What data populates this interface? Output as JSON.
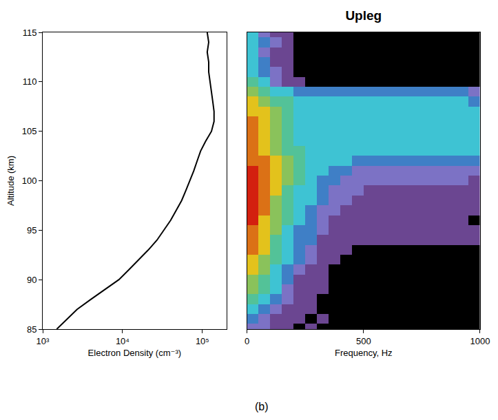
{
  "chart_data": [
    {
      "type": "line",
      "x_label": "Electron Density (cm⁻³)",
      "y_label": "Altitude (km)",
      "log": "x",
      "color": "#000000",
      "x": [
        1500,
        2000,
        2700,
        4000,
        6000,
        9000,
        12000,
        16000,
        21000,
        27000,
        33000,
        40000,
        47000,
        55000,
        62000,
        70000,
        78000,
        86000,
        95000,
        110000,
        130000,
        140000,
        140000,
        135000,
        130000,
        125000,
        120000,
        120000,
        115000,
        120000,
        115000
      ],
      "y": [
        85,
        86,
        87,
        88,
        89,
        90,
        91,
        92,
        93,
        94,
        95,
        96,
        97,
        98,
        99,
        100,
        101,
        102,
        103,
        104,
        105,
        106,
        107,
        108,
        109,
        110,
        111,
        112,
        113,
        114,
        115
      ],
      "xlim": [
        1000,
        200000
      ],
      "xticks": [
        {
          "value": 1000,
          "label": "10³"
        },
        {
          "value": 10000,
          "label": "10⁴"
        },
        {
          "value": 100000,
          "label": "10⁵"
        }
      ],
      "ylim": [
        85,
        115
      ],
      "yticks": [
        85,
        90,
        95,
        100,
        105,
        110,
        115
      ]
    },
    {
      "type": "heatmap",
      "title": "Upleg",
      "x_label": "Frequency, Hz",
      "tick_labels": "x",
      "x": [
        25,
        75,
        125,
        175,
        225,
        275,
        325,
        375,
        425,
        475,
        525,
        575,
        625,
        675,
        725,
        775,
        825,
        875,
        925,
        975
      ],
      "y": [
        85,
        86,
        87,
        88,
        89,
        90,
        91,
        92,
        93,
        94,
        95,
        96,
        97,
        98,
        99,
        100,
        101,
        102,
        103,
        104,
        105,
        106,
        107,
        108,
        109,
        110,
        111,
        112,
        113,
        114,
        115
      ],
      "z": [
        [
          3,
          3,
          2,
          2,
          1,
          2,
          1,
          1,
          0,
          0,
          0,
          0,
          0,
          0,
          0,
          0,
          0,
          0,
          0,
          0
        ],
        [
          4,
          3,
          2,
          2,
          2,
          1,
          2,
          0,
          0,
          0,
          0,
          0,
          0,
          0,
          0,
          0,
          0,
          0,
          0,
          0
        ],
        [
          5,
          4,
          3,
          2,
          2,
          2,
          1,
          0,
          0,
          0,
          0,
          0,
          0,
          0,
          0,
          0,
          0,
          0,
          0,
          0
        ],
        [
          6,
          5,
          4,
          3,
          2,
          2,
          1,
          0,
          0,
          0,
          0,
          0,
          0,
          0,
          0,
          0,
          0,
          0,
          0,
          0
        ],
        [
          7,
          6,
          5,
          3,
          2,
          2,
          2,
          1,
          0,
          0,
          0,
          0,
          0,
          0,
          0,
          0,
          0,
          0,
          0,
          0
        ],
        [
          7,
          6,
          5,
          4,
          2,
          2,
          2,
          1,
          0,
          0,
          0,
          0,
          0,
          0,
          0,
          0,
          0,
          0,
          0,
          0
        ],
        [
          8,
          7,
          5,
          4,
          3,
          2,
          2,
          1,
          1,
          0,
          0,
          0,
          0,
          0,
          0,
          0,
          0,
          0,
          0,
          0
        ],
        [
          8,
          7,
          6,
          5,
          4,
          3,
          2,
          2,
          1,
          1,
          1,
          1,
          0,
          0,
          0,
          0,
          0,
          0,
          0,
          0
        ],
        [
          9,
          8,
          6,
          5,
          4,
          3,
          2,
          2,
          2,
          1,
          1,
          1,
          1,
          1,
          1,
          1,
          1,
          1,
          1,
          1
        ],
        [
          9,
          8,
          6,
          5,
          4,
          4,
          2,
          2,
          2,
          2,
          2,
          2,
          2,
          2,
          2,
          2,
          2,
          2,
          2,
          2
        ],
        [
          9,
          8,
          7,
          5,
          4,
          4,
          3,
          2,
          2,
          2,
          2,
          2,
          2,
          2,
          2,
          2,
          2,
          2,
          2,
          2
        ],
        [
          10,
          8,
          7,
          6,
          5,
          4,
          3,
          2,
          2,
          2,
          2,
          2,
          2,
          2,
          2,
          2,
          2,
          2,
          2,
          1
        ],
        [
          10,
          9,
          7,
          6,
          5,
          4,
          3,
          3,
          2,
          2,
          2,
          2,
          2,
          2,
          2,
          2,
          2,
          2,
          2,
          2
        ],
        [
          10,
          9,
          7,
          6,
          5,
          5,
          4,
          3,
          3,
          2,
          2,
          2,
          2,
          2,
          2,
          2,
          2,
          2,
          2,
          2
        ],
        [
          10,
          9,
          8,
          6,
          5,
          5,
          4,
          3,
          3,
          3,
          2,
          2,
          2,
          2,
          2,
          2,
          2,
          2,
          2,
          2
        ],
        [
          10,
          9,
          8,
          7,
          6,
          5,
          4,
          4,
          3,
          3,
          3,
          3,
          3,
          3,
          3,
          3,
          3,
          3,
          3,
          2
        ],
        [
          10,
          9,
          8,
          7,
          6,
          5,
          5,
          4,
          4,
          3,
          3,
          3,
          3,
          3,
          3,
          3,
          3,
          3,
          3,
          3
        ],
        [
          9,
          9,
          8,
          7,
          6,
          5,
          5,
          5,
          5,
          4,
          4,
          4,
          4,
          4,
          4,
          4,
          4,
          4,
          4,
          4
        ],
        [
          9,
          8,
          7,
          6,
          6,
          5,
          5,
          5,
          5,
          5,
          5,
          5,
          5,
          5,
          5,
          5,
          5,
          5,
          5,
          5
        ],
        [
          9,
          8,
          7,
          6,
          5,
          5,
          5,
          5,
          5,
          5,
          5,
          5,
          5,
          5,
          5,
          5,
          5,
          5,
          5,
          5
        ],
        [
          9,
          8,
          7,
          6,
          5,
          5,
          5,
          5,
          5,
          5,
          5,
          5,
          5,
          5,
          5,
          5,
          5,
          5,
          5,
          5
        ],
        [
          9,
          8,
          7,
          6,
          5,
          5,
          5,
          5,
          5,
          5,
          5,
          5,
          5,
          5,
          5,
          5,
          5,
          5,
          5,
          5
        ],
        [
          8,
          8,
          7,
          6,
          5,
          5,
          5,
          5,
          5,
          5,
          5,
          5,
          5,
          5,
          5,
          5,
          5,
          5,
          5,
          5
        ],
        [
          8,
          7,
          6,
          6,
          5,
          5,
          5,
          5,
          5,
          5,
          5,
          5,
          5,
          5,
          5,
          5,
          5,
          5,
          5,
          4
        ],
        [
          7,
          6,
          5,
          5,
          4,
          4,
          4,
          4,
          4,
          4,
          4,
          4,
          4,
          4,
          4,
          4,
          4,
          4,
          4,
          3
        ],
        [
          6,
          5,
          3,
          2,
          2,
          1,
          1,
          1,
          0,
          0,
          0,
          0,
          0,
          0,
          0,
          0,
          0,
          0,
          0,
          0
        ],
        [
          5,
          4,
          3,
          2,
          1,
          1,
          0,
          0,
          0,
          0,
          0,
          0,
          0,
          0,
          0,
          0,
          0,
          0,
          0,
          0
        ],
        [
          5,
          4,
          2,
          2,
          1,
          0,
          0,
          0,
          0,
          0,
          0,
          0,
          0,
          0,
          0,
          0,
          0,
          0,
          0,
          0
        ],
        [
          5,
          3,
          2,
          2,
          1,
          0,
          0,
          0,
          0,
          0,
          0,
          0,
          0,
          0,
          0,
          0,
          0,
          0,
          0,
          0
        ],
        [
          5,
          4,
          3,
          2,
          1,
          0,
          0,
          0,
          0,
          0,
          0,
          0,
          0,
          0,
          0,
          0,
          0,
          0,
          0,
          0
        ],
        [
          5,
          3,
          2,
          2,
          1,
          0,
          0,
          0,
          0,
          0,
          0,
          0,
          0,
          0,
          0,
          0,
          0,
          0,
          0,
          0
        ]
      ],
      "xlim": [
        0,
        1000
      ],
      "xticks": [
        0,
        500,
        1000
      ],
      "ylim": [
        85,
        115
      ],
      "yticks": [
        85,
        90,
        95,
        100,
        105,
        110,
        115
      ]
    }
  ],
  "caption": "(b)"
}
